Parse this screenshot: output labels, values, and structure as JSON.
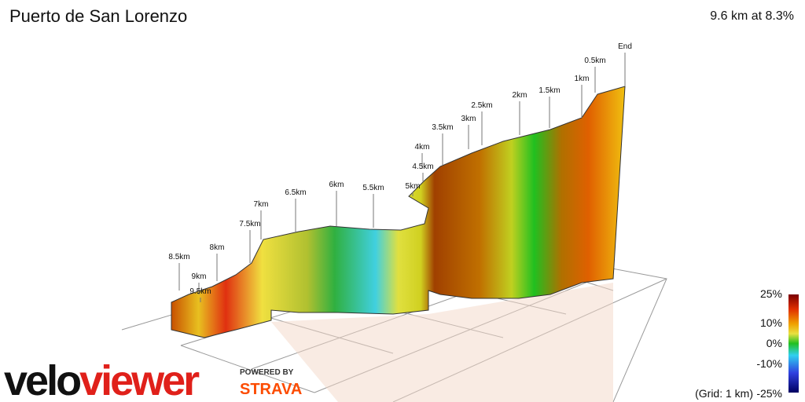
{
  "header": {
    "title": "Puerto de San Lorenzo",
    "summary": "9.6 km at 8.3%"
  },
  "markers": [
    "End",
    "0.5km",
    "1km",
    "1.5km",
    "2km",
    "2.5km",
    "3km",
    "3.5km",
    "4km",
    "4.5km",
    "5km",
    "5.5km",
    "6km",
    "6.5km",
    "7km",
    "7.5km",
    "8km",
    "8.5km",
    "9km",
    "9.5km"
  ],
  "legend": {
    "ticks": [
      "25%",
      "10%",
      "0%",
      "-10%",
      "-25%"
    ],
    "note": "(Grid: 1 km)"
  },
  "logo": {
    "velo": "velo",
    "viewer": "viewer",
    "powered": "POWERED BY",
    "strava": "STRAVA"
  }
}
